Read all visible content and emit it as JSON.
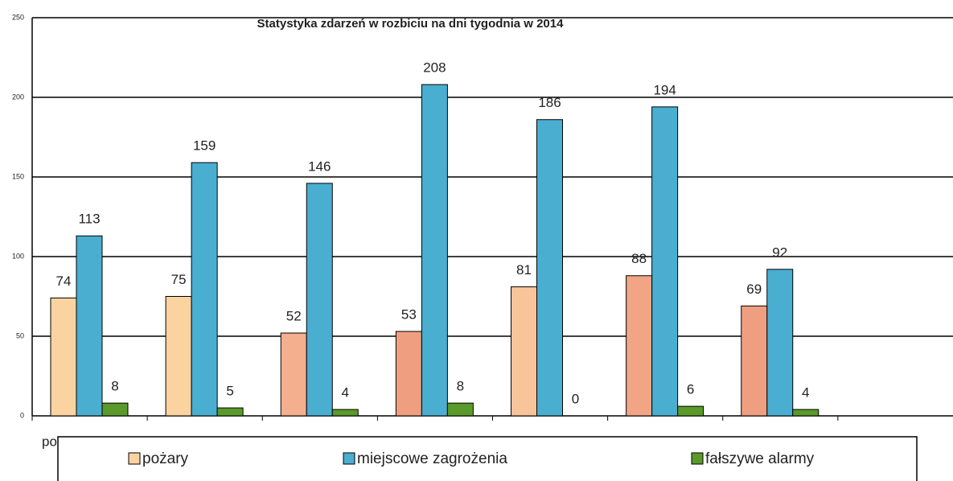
{
  "chart_data": {
    "type": "bar",
    "title": "Statystyka zdarzeń w rozbiciu na dni tygodnia w 2014",
    "categories": [
      "po",
      null,
      null,
      null,
      null,
      null,
      null
    ],
    "series": [
      {
        "name": "pożary",
        "color": "#fbd3a0",
        "colors": [
          "#fbd3a0",
          "#fbd3a0",
          "#f4b08e",
          "#ef9f7f",
          "#f8c49a",
          "#f1a584",
          "#ef9f7f"
        ],
        "values": [
          74,
          75,
          52,
          53,
          81,
          88,
          69
        ]
      },
      {
        "name": "miejscowe zagrożenia",
        "color": "#4aaed0",
        "values": [
          113,
          159,
          146,
          208,
          186,
          194,
          92
        ]
      },
      {
        "name": "fałszywe alarmy",
        "color": "#5a9a2a",
        "values": [
          8,
          5,
          4,
          8,
          0,
          6,
          4
        ]
      }
    ],
    "ylim": [
      0,
      250
    ],
    "yticks": [
      0,
      50,
      100,
      150,
      200,
      250
    ],
    "grid": true,
    "legend": "bottom"
  }
}
